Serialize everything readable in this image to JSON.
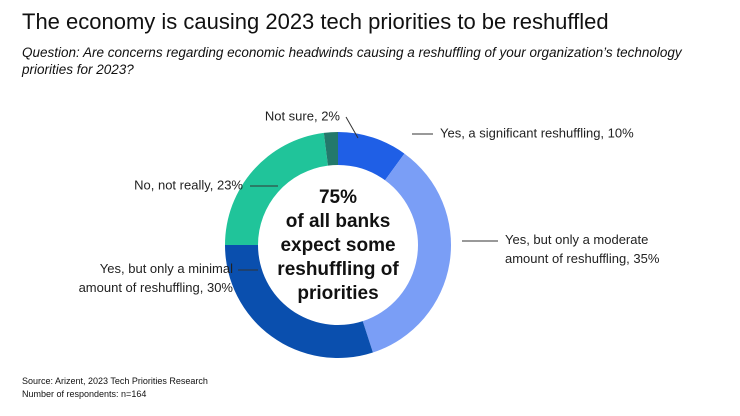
{
  "chart_data": {
    "type": "donut",
    "title": "The economy is causing 2023 tech priorities to be reshuffled",
    "subtitle": "Question: Are concerns regarding economic headwinds causing a reshuffling of your organization’s technology priorities for 2023?",
    "values": [
      10,
      35,
      30,
      23,
      2
    ],
    "value_labels": [
      "Yes, a significant reshuffling, 10%",
      "Yes, but only a moderate amount of reshuffling, 35%",
      "Yes, but only a minimal amount of reshuffling, 30%",
      "No, not really, 23%",
      "Not sure, 2%"
    ],
    "colors": [
      "#1f5fe6",
      "#7a9ef6",
      "#0a4fae",
      "#20c49a",
      "#23796b"
    ],
    "center_text": [
      "75%",
      "of all banks",
      "expect some",
      "reshuffling of",
      "priorities"
    ],
    "source": "Source: Arizent, 2023 Tech Priorities Research",
    "respondents": "Number of respondents: n=164"
  }
}
